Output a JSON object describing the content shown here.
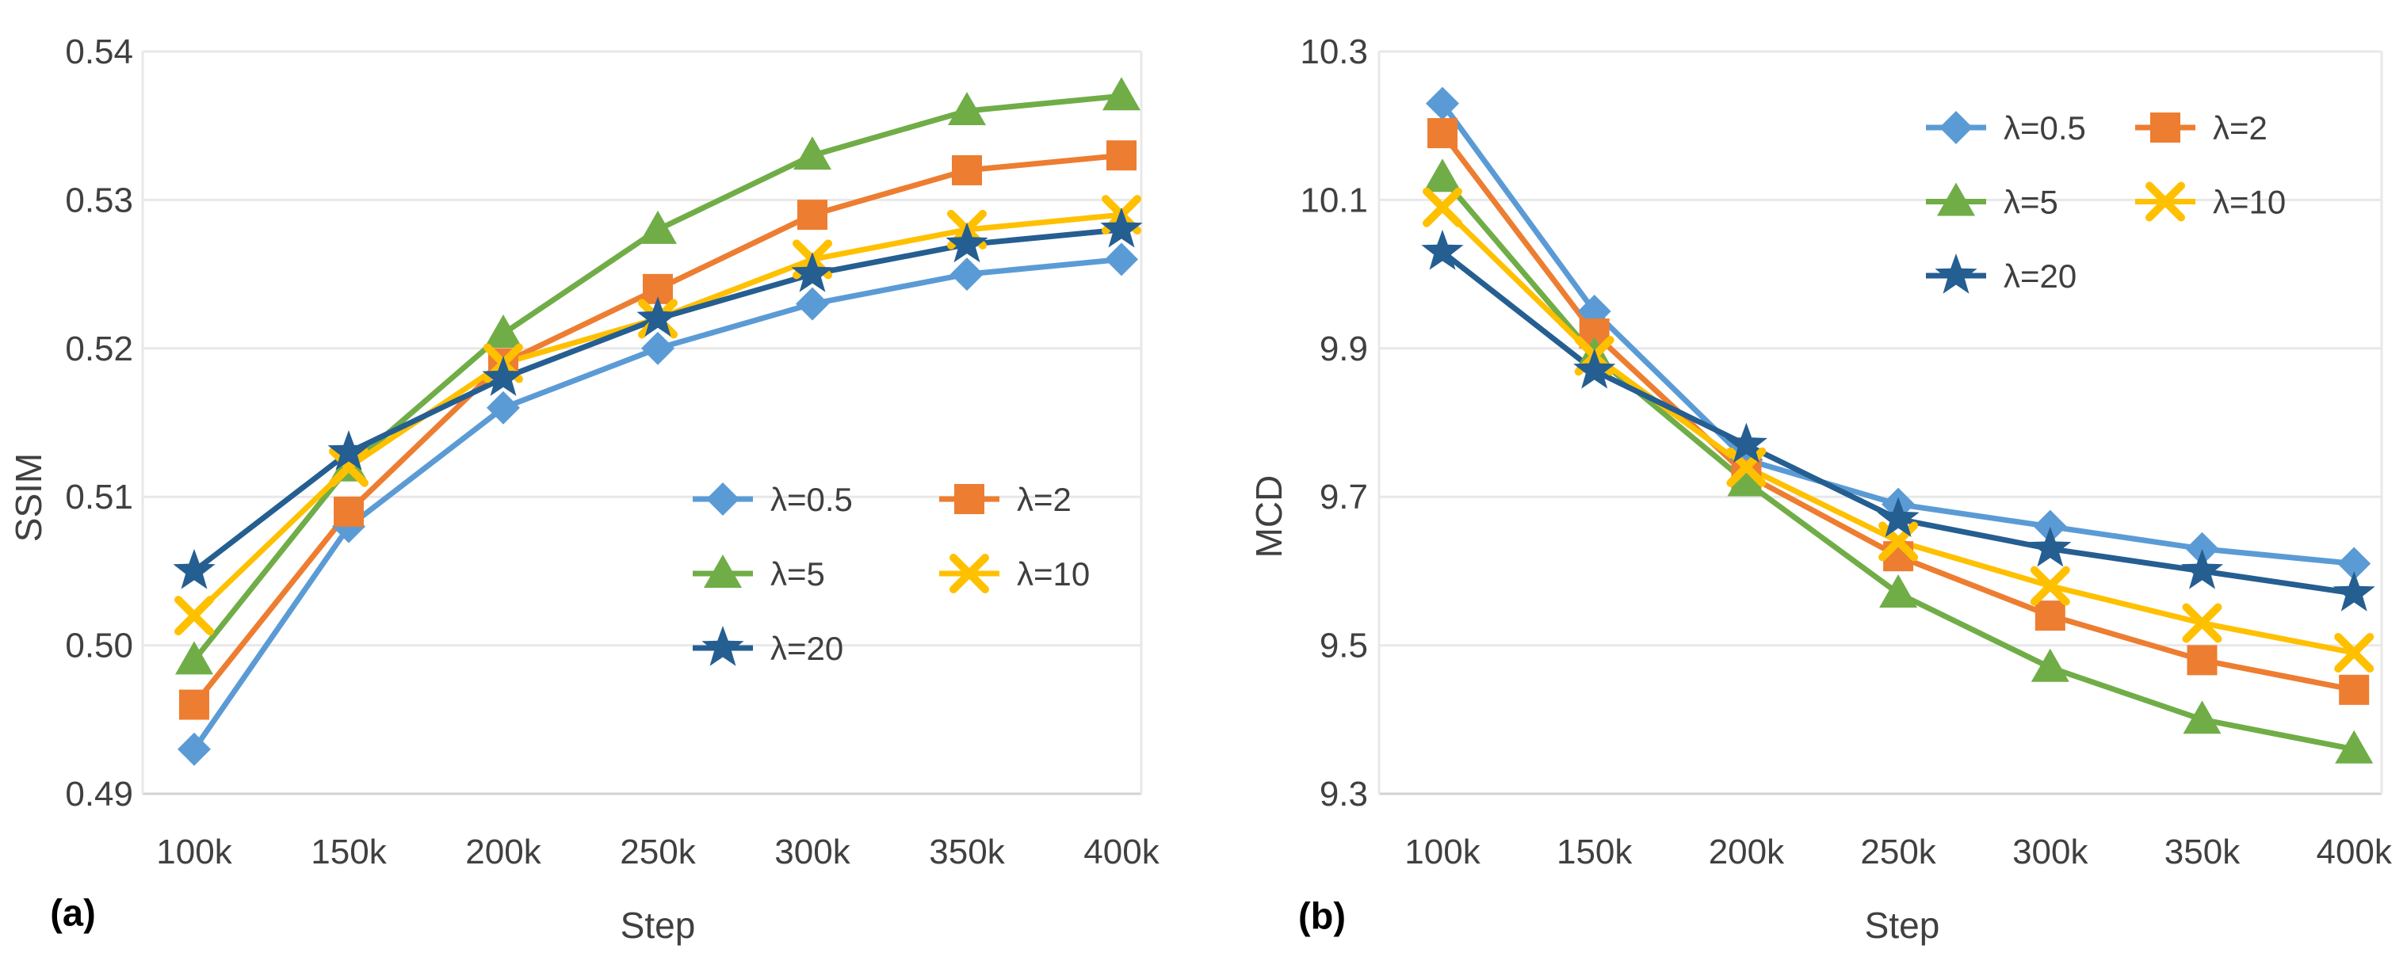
{
  "style": {
    "background": "#ffffff",
    "grid_color": "#e8e8e8",
    "axis_line_color": "#d2d2d2",
    "tick_text_color": "#404040",
    "legend_text_color": "#3f3f3f"
  },
  "chart_data": [
    {
      "type": "line",
      "panel_label": "(a)",
      "xlabel": "Step",
      "ylabel": "SSIM",
      "categories": [
        "100k",
        "150k",
        "200k",
        "250k",
        "300k",
        "350k",
        "400k"
      ],
      "ylim": [
        0.49,
        0.54
      ],
      "y_ticks": [
        0.49,
        0.5,
        0.51,
        0.52,
        0.53,
        0.54
      ],
      "y_tick_labels": [
        "0.49",
        "0.50",
        "0.51",
        "0.52",
        "0.53",
        "0.54"
      ],
      "grid": "horizontal",
      "legend_position": "inside-center-right",
      "series": [
        {
          "name": "λ=0.5",
          "color": "#5B9BD5",
          "marker": "diamond",
          "values": [
            0.493,
            0.508,
            0.516,
            0.52,
            0.523,
            0.525,
            0.526
          ]
        },
        {
          "name": "λ=2",
          "color": "#ED7D31",
          "marker": "square",
          "values": [
            0.496,
            0.509,
            0.519,
            0.524,
            0.529,
            0.532,
            0.533
          ]
        },
        {
          "name": "λ=5",
          "color": "#70AD47",
          "marker": "triangle",
          "values": [
            0.499,
            0.512,
            0.521,
            0.528,
            0.533,
            0.536,
            0.537
          ]
        },
        {
          "name": "λ=10",
          "color": "#FFC000",
          "marker": "x",
          "values": [
            0.502,
            0.512,
            0.519,
            0.522,
            0.526,
            0.528,
            0.529
          ]
        },
        {
          "name": "λ=20",
          "color": "#255E91",
          "marker": "star",
          "values": [
            0.505,
            0.513,
            0.518,
            0.522,
            0.525,
            0.527,
            0.528
          ]
        }
      ]
    },
    {
      "type": "line",
      "panel_label": "(b)",
      "xlabel": "Step",
      "ylabel": "MCD",
      "categories": [
        "100k",
        "150k",
        "200k",
        "250k",
        "300k",
        "350k",
        "400k"
      ],
      "ylim": [
        9.3,
        10.3
      ],
      "y_ticks": [
        9.3,
        9.5,
        9.7,
        9.9,
        10.1,
        10.3
      ],
      "y_tick_labels": [
        "9.3",
        "9.5",
        "9.7",
        "9.9",
        "10.1",
        "10.3"
      ],
      "grid": "horizontal",
      "legend_position": "inside-top-right",
      "series": [
        {
          "name": "λ=0.5",
          "color": "#5B9BD5",
          "marker": "diamond",
          "values": [
            10.23,
            9.95,
            9.75,
            9.69,
            9.66,
            9.63,
            9.61
          ]
        },
        {
          "name": "λ=2",
          "color": "#ED7D31",
          "marker": "square",
          "values": [
            10.19,
            9.92,
            9.73,
            9.62,
            9.54,
            9.48,
            9.44
          ]
        },
        {
          "name": "λ=5",
          "color": "#70AD47",
          "marker": "triangle",
          "values": [
            10.13,
            9.89,
            9.72,
            9.57,
            9.47,
            9.4,
            9.36
          ]
        },
        {
          "name": "λ=10",
          "color": "#FFC000",
          "marker": "x",
          "values": [
            10.09,
            9.89,
            9.74,
            9.64,
            9.58,
            9.53,
            9.49
          ]
        },
        {
          "name": "λ=20",
          "color": "#255E91",
          "marker": "star",
          "values": [
            10.03,
            9.87,
            9.77,
            9.67,
            9.63,
            9.6,
            9.57
          ]
        }
      ]
    }
  ]
}
